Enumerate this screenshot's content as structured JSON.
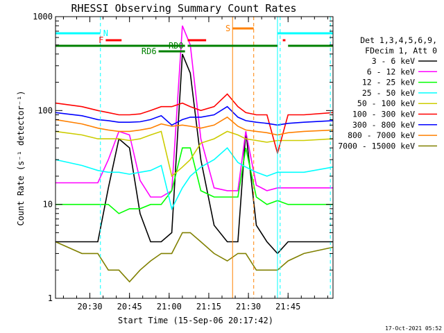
{
  "chart_data": {
    "type": "line",
    "title": "RHESSI Observing Summary Count Rates",
    "xlabel": "Start Time (15-Sep-06 20:17:42)",
    "ylabel": "Count Rate (s⁻¹ detector⁻¹)",
    "y_scale": "log",
    "ylim": [
      1,
      1000
    ],
    "y_ticks": [
      {
        "v": 1,
        "label": "1"
      },
      {
        "v": 10,
        "label": "10"
      },
      {
        "v": 100,
        "label": "100"
      },
      {
        "v": 1000,
        "label": "1000"
      }
    ],
    "x_range_min": [
      0,
      105
    ],
    "x_ticks": [
      {
        "m": 13,
        "label": "20:30"
      },
      {
        "m": 28,
        "label": "20:45"
      },
      {
        "m": 43,
        "label": "21:00"
      },
      {
        "m": 58,
        "label": "21:15"
      },
      {
        "m": 73,
        "label": "21:30"
      },
      {
        "m": 88,
        "label": "21:45"
      }
    ],
    "legend_header": [
      "Det 1,3,4,5,6,9,",
      "FDecim 1, Att 0"
    ],
    "timestamp": "17-Oct-2021 05:52",
    "series": [
      {
        "name": "3 - 6 keV",
        "color": "#000000",
        "points": [
          [
            0,
            4
          ],
          [
            10,
            4
          ],
          [
            16,
            4
          ],
          [
            20,
            15
          ],
          [
            24,
            50
          ],
          [
            28,
            40
          ],
          [
            32,
            8
          ],
          [
            36,
            4
          ],
          [
            40,
            4
          ],
          [
            44,
            5
          ],
          [
            48,
            400
          ],
          [
            51,
            250
          ],
          [
            55,
            30
          ],
          [
            60,
            6
          ],
          [
            65,
            4
          ],
          [
            69,
            4
          ],
          [
            72,
            60
          ],
          [
            76,
            6
          ],
          [
            80,
            4
          ],
          [
            84,
            3
          ],
          [
            88,
            4
          ],
          [
            94,
            4
          ],
          [
            105,
            4
          ]
        ]
      },
      {
        "name": "6 - 12 keV",
        "color": "#ff00ff",
        "points": [
          [
            0,
            17
          ],
          [
            10,
            17
          ],
          [
            16,
            17
          ],
          [
            20,
            30
          ],
          [
            24,
            60
          ],
          [
            28,
            55
          ],
          [
            32,
            18
          ],
          [
            36,
            12
          ],
          [
            40,
            12
          ],
          [
            44,
            14
          ],
          [
            48,
            800
          ],
          [
            51,
            500
          ],
          [
            55,
            50
          ],
          [
            60,
            15
          ],
          [
            65,
            14
          ],
          [
            69,
            14
          ],
          [
            72,
            60
          ],
          [
            76,
            16
          ],
          [
            80,
            14
          ],
          [
            84,
            15
          ],
          [
            88,
            15
          ],
          [
            94,
            15
          ],
          [
            105,
            15
          ]
        ]
      },
      {
        "name": "12 - 25 keV",
        "color": "#00ff00",
        "points": [
          [
            0,
            10
          ],
          [
            10,
            10
          ],
          [
            16,
            10
          ],
          [
            20,
            10
          ],
          [
            24,
            8
          ],
          [
            28,
            9
          ],
          [
            32,
            9
          ],
          [
            36,
            10
          ],
          [
            40,
            10
          ],
          [
            44,
            14
          ],
          [
            48,
            40
          ],
          [
            51,
            40
          ],
          [
            55,
            14
          ],
          [
            60,
            12
          ],
          [
            65,
            12
          ],
          [
            69,
            12
          ],
          [
            72,
            40
          ],
          [
            76,
            12
          ],
          [
            80,
            10
          ],
          [
            84,
            11
          ],
          [
            88,
            10
          ],
          [
            94,
            10
          ],
          [
            105,
            10
          ]
        ]
      },
      {
        "name": "25 - 50 keV",
        "color": "#00ffff",
        "points": [
          [
            0,
            30
          ],
          [
            10,
            26
          ],
          [
            16,
            23
          ],
          [
            20,
            22
          ],
          [
            24,
            22
          ],
          [
            28,
            21
          ],
          [
            32,
            22
          ],
          [
            36,
            23
          ],
          [
            40,
            26
          ],
          [
            44,
            9
          ],
          [
            48,
            15
          ],
          [
            51,
            20
          ],
          [
            55,
            25
          ],
          [
            60,
            30
          ],
          [
            65,
            40
          ],
          [
            69,
            28
          ],
          [
            72,
            25
          ],
          [
            76,
            22
          ],
          [
            80,
            20
          ],
          [
            84,
            22
          ],
          [
            88,
            22
          ],
          [
            94,
            22
          ],
          [
            105,
            25
          ]
        ]
      },
      {
        "name": "50 - 100 keV",
        "color": "#cccc00",
        "points": [
          [
            0,
            60
          ],
          [
            10,
            55
          ],
          [
            16,
            50
          ],
          [
            20,
            50
          ],
          [
            24,
            50
          ],
          [
            28,
            48
          ],
          [
            32,
            50
          ],
          [
            36,
            55
          ],
          [
            40,
            60
          ],
          [
            44,
            20
          ],
          [
            48,
            25
          ],
          [
            51,
            30
          ],
          [
            55,
            45
          ],
          [
            60,
            50
          ],
          [
            65,
            60
          ],
          [
            69,
            55
          ],
          [
            72,
            50
          ],
          [
            76,
            48
          ],
          [
            80,
            46
          ],
          [
            84,
            48
          ],
          [
            88,
            48
          ],
          [
            94,
            48
          ],
          [
            105,
            50
          ]
        ]
      },
      {
        "name": "100 - 300 keV",
        "color": "#ff0000",
        "points": [
          [
            0,
            120
          ],
          [
            10,
            110
          ],
          [
            16,
            100
          ],
          [
            20,
            95
          ],
          [
            24,
            90
          ],
          [
            28,
            90
          ],
          [
            32,
            92
          ],
          [
            36,
            100
          ],
          [
            40,
            110
          ],
          [
            44,
            110
          ],
          [
            48,
            120
          ],
          [
            51,
            110
          ],
          [
            55,
            100
          ],
          [
            60,
            110
          ],
          [
            65,
            150
          ],
          [
            69,
            110
          ],
          [
            72,
            95
          ],
          [
            76,
            90
          ],
          [
            80,
            90
          ],
          [
            84,
            35
          ],
          [
            88,
            90
          ],
          [
            94,
            90
          ],
          [
            105,
            95
          ]
        ]
      },
      {
        "name": "300 - 800 keV",
        "color": "#0000ff",
        "points": [
          [
            0,
            95
          ],
          [
            10,
            88
          ],
          [
            16,
            80
          ],
          [
            20,
            78
          ],
          [
            24,
            75
          ],
          [
            28,
            75
          ],
          [
            32,
            76
          ],
          [
            36,
            80
          ],
          [
            40,
            88
          ],
          [
            44,
            70
          ],
          [
            48,
            80
          ],
          [
            51,
            85
          ],
          [
            55,
            85
          ],
          [
            60,
            90
          ],
          [
            65,
            110
          ],
          [
            69,
            85
          ],
          [
            72,
            78
          ],
          [
            76,
            75
          ],
          [
            80,
            73
          ],
          [
            84,
            70
          ],
          [
            88,
            73
          ],
          [
            94,
            75
          ],
          [
            105,
            78
          ]
        ]
      },
      {
        "name": "800 - 7000 keV",
        "color": "#ff8000",
        "points": [
          [
            0,
            80
          ],
          [
            10,
            72
          ],
          [
            16,
            65
          ],
          [
            20,
            62
          ],
          [
            24,
            60
          ],
          [
            28,
            60
          ],
          [
            32,
            62
          ],
          [
            36,
            65
          ],
          [
            40,
            72
          ],
          [
            44,
            68
          ],
          [
            48,
            70
          ],
          [
            51,
            68
          ],
          [
            55,
            65
          ],
          [
            60,
            70
          ],
          [
            65,
            85
          ],
          [
            69,
            68
          ],
          [
            72,
            62
          ],
          [
            76,
            60
          ],
          [
            80,
            58
          ],
          [
            84,
            55
          ],
          [
            88,
            58
          ],
          [
            94,
            60
          ],
          [
            105,
            62
          ]
        ]
      },
      {
        "name": "7000 - 15000 keV",
        "color": "#808000",
        "points": [
          [
            0,
            4
          ],
          [
            10,
            3
          ],
          [
            16,
            3
          ],
          [
            20,
            2
          ],
          [
            24,
            2
          ],
          [
            28,
            1.5
          ],
          [
            32,
            2
          ],
          [
            36,
            2.5
          ],
          [
            40,
            3
          ],
          [
            44,
            3
          ],
          [
            48,
            5
          ],
          [
            51,
            5
          ],
          [
            55,
            4
          ],
          [
            60,
            3
          ],
          [
            65,
            2.5
          ],
          [
            69,
            3
          ],
          [
            72,
            3
          ],
          [
            76,
            2
          ],
          [
            80,
            2
          ],
          [
            84,
            2
          ],
          [
            88,
            2.5
          ],
          [
            94,
            3
          ],
          [
            105,
            3.5
          ]
        ]
      }
    ],
    "annotations": [
      {
        "label": "N",
        "color": "#00ffff",
        "segments": [
          [
            0,
            17
          ],
          [
            84,
            105
          ]
        ]
      },
      {
        "label": "F",
        "color": "#ff0000",
        "segments": [
          [
            19,
            25
          ],
          [
            50,
            57
          ],
          [
            86,
            87
          ]
        ]
      },
      {
        "label": "RD0",
        "color": "#008000",
        "segments": [
          [
            0,
            49
          ],
          [
            50,
            84
          ],
          [
            88,
            105
          ]
        ]
      },
      {
        "label": "RD6",
        "color": "#008000",
        "segments": [
          [
            39,
            49
          ]
        ]
      },
      {
        "label": "S",
        "color": "#ff8000",
        "segments": [
          [
            67,
            75
          ]
        ]
      }
    ],
    "vlines": [
      {
        "m": 0,
        "color": "#00ffff",
        "dash": true
      },
      {
        "m": 17,
        "color": "#00ffff",
        "dash": true
      },
      {
        "m": 67,
        "color": "#ff8000",
        "dash": false
      },
      {
        "m": 75,
        "color": "#ff8000",
        "dash": true
      },
      {
        "m": 84,
        "color": "#00ffff",
        "dash": false
      },
      {
        "m": 85,
        "color": "#00ffff",
        "dash": true
      },
      {
        "m": 104,
        "color": "#00ffff",
        "dash": true
      }
    ]
  }
}
